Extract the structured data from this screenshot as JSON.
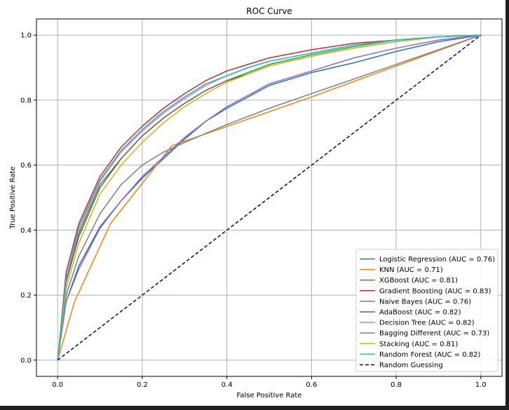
{
  "chart_data": {
    "type": "line",
    "title": "ROC Curve",
    "xlabel": "False Positive Rate",
    "ylabel": "True Positive Rate",
    "xlim": [
      -0.05,
      1.05
    ],
    "ylim": [
      -0.05,
      1.05
    ],
    "xticks": [
      "0.0",
      "0.2",
      "0.4",
      "0.6",
      "0.8",
      "1.0"
    ],
    "yticks": [
      "0.0",
      "0.2",
      "0.4",
      "0.6",
      "0.8",
      "1.0"
    ],
    "xtick_values": [
      0,
      0.2,
      0.4,
      0.6,
      0.8,
      1.0
    ],
    "ytick_values": [
      0,
      0.2,
      0.4,
      0.6,
      0.8,
      1.0
    ],
    "grid": true,
    "legend_position": "lower-right",
    "series": [
      {
        "name": "Logistic Regression (AUC = 0.76)",
        "color": "#1f77b4",
        "dash": false,
        "x": [
          0,
          0.02,
          0.05,
          0.1,
          0.15,
          0.2,
          0.25,
          0.3,
          0.35,
          0.4,
          0.45,
          0.5,
          0.6,
          0.7,
          0.8,
          0.9,
          1.0
        ],
        "y": [
          0,
          0.18,
          0.29,
          0.41,
          0.49,
          0.56,
          0.62,
          0.68,
          0.735,
          0.775,
          0.81,
          0.845,
          0.885,
          0.915,
          0.95,
          0.98,
          1.0
        ]
      },
      {
        "name": "KNN (AUC = 0.71)",
        "color": "#ff7f0e",
        "dash": false,
        "x": [
          0,
          0.04,
          0.125,
          0.27,
          0.6,
          0.8,
          1.0
        ],
        "y": [
          0,
          0.18,
          0.42,
          0.66,
          0.81,
          0.905,
          1.0
        ]
      },
      {
        "name": "XGBoost (AUC = 0.81)",
        "color": "#2ca02c",
        "dash": false,
        "x": [
          0,
          0.02,
          0.05,
          0.1,
          0.15,
          0.2,
          0.25,
          0.3,
          0.35,
          0.4,
          0.45,
          0.5,
          0.6,
          0.7,
          0.8,
          0.9,
          1.0
        ],
        "y": [
          0,
          0.24,
          0.39,
          0.54,
          0.62,
          0.69,
          0.745,
          0.79,
          0.83,
          0.86,
          0.885,
          0.91,
          0.94,
          0.965,
          0.985,
          0.995,
          1.0
        ]
      },
      {
        "name": "Gradient Boosting (AUC = 0.83)",
        "color": "#d62728",
        "dash": false,
        "x": [
          0,
          0.02,
          0.05,
          0.1,
          0.15,
          0.2,
          0.25,
          0.3,
          0.35,
          0.4,
          0.45,
          0.5,
          0.6,
          0.7,
          0.8,
          0.9,
          1.0
        ],
        "y": [
          0,
          0.27,
          0.42,
          0.565,
          0.655,
          0.72,
          0.775,
          0.82,
          0.86,
          0.89,
          0.91,
          0.93,
          0.955,
          0.975,
          0.985,
          0.995,
          1.0
        ]
      },
      {
        "name": "Naive Bayes (AUC = 0.76)",
        "color": "#9467bd",
        "dash": false,
        "x": [
          0,
          0.02,
          0.05,
          0.1,
          0.15,
          0.2,
          0.25,
          0.3,
          0.35,
          0.4,
          0.45,
          0.5,
          0.6,
          0.7,
          0.8,
          0.9,
          1.0
        ],
        "y": [
          0,
          0.18,
          0.28,
          0.405,
          0.49,
          0.565,
          0.625,
          0.685,
          0.735,
          0.78,
          0.815,
          0.85,
          0.89,
          0.93,
          0.96,
          0.985,
          1.0
        ]
      },
      {
        "name": "AdaBoost (AUC = 0.82)",
        "color": "#8c564b",
        "dash": false,
        "x": [
          0,
          0.02,
          0.05,
          0.1,
          0.15,
          0.2,
          0.25,
          0.3,
          0.35,
          0.4,
          0.45,
          0.5,
          0.6,
          0.7,
          0.8,
          0.9,
          1.0
        ],
        "y": [
          0,
          0.24,
          0.38,
          0.53,
          0.62,
          0.69,
          0.745,
          0.79,
          0.83,
          0.86,
          0.88,
          0.905,
          0.935,
          0.96,
          0.98,
          0.995,
          1.0
        ]
      },
      {
        "name": "Decision Tree (AUC = 0.82)",
        "color": "#e377c2",
        "dash": false,
        "x": [
          0,
          0.02,
          0.05,
          0.1,
          0.15,
          0.2,
          0.25,
          0.3,
          0.35,
          0.4,
          0.45,
          0.5,
          0.6,
          0.7,
          0.8,
          0.9,
          1.0
        ],
        "y": [
          0,
          0.25,
          0.4,
          0.55,
          0.64,
          0.705,
          0.76,
          0.805,
          0.845,
          0.875,
          0.9,
          0.92,
          0.945,
          0.97,
          0.985,
          0.995,
          1.0
        ]
      },
      {
        "name": "Bagging Different (AUC = 0.73)",
        "color": "#7f7f7f",
        "dash": false,
        "x": [
          0,
          0.02,
          0.05,
          0.1,
          0.15,
          0.2,
          0.25,
          0.3,
          0.4,
          0.5,
          0.6,
          0.7,
          0.8,
          0.9,
          1.0
        ],
        "y": [
          0,
          0.2,
          0.32,
          0.45,
          0.54,
          0.6,
          0.64,
          0.67,
          0.725,
          0.775,
          0.82,
          0.865,
          0.91,
          0.955,
          1.0
        ]
      },
      {
        "name": "Stacking (AUC = 0.81)",
        "color": "#bcbd22",
        "dash": false,
        "x": [
          0,
          0.02,
          0.05,
          0.1,
          0.15,
          0.2,
          0.25,
          0.3,
          0.35,
          0.4,
          0.45,
          0.5,
          0.6,
          0.7,
          0.8,
          0.9,
          1.0
        ],
        "y": [
          0,
          0.22,
          0.36,
          0.51,
          0.6,
          0.67,
          0.73,
          0.78,
          0.82,
          0.855,
          0.88,
          0.905,
          0.935,
          0.96,
          0.98,
          0.995,
          1.0
        ]
      },
      {
        "name": "Random Forest (AUC = 0.82)",
        "color": "#17becf",
        "dash": false,
        "x": [
          0,
          0.02,
          0.05,
          0.1,
          0.15,
          0.2,
          0.25,
          0.3,
          0.35,
          0.4,
          0.45,
          0.5,
          0.6,
          0.7,
          0.8,
          0.9,
          1.0
        ],
        "y": [
          0,
          0.25,
          0.41,
          0.555,
          0.645,
          0.71,
          0.765,
          0.81,
          0.85,
          0.875,
          0.9,
          0.92,
          0.945,
          0.97,
          0.985,
          0.995,
          1.0
        ]
      },
      {
        "name": "Random Guessing",
        "color": "#000080",
        "dash": true,
        "x": [
          0,
          1
        ],
        "y": [
          0,
          1
        ]
      }
    ]
  }
}
